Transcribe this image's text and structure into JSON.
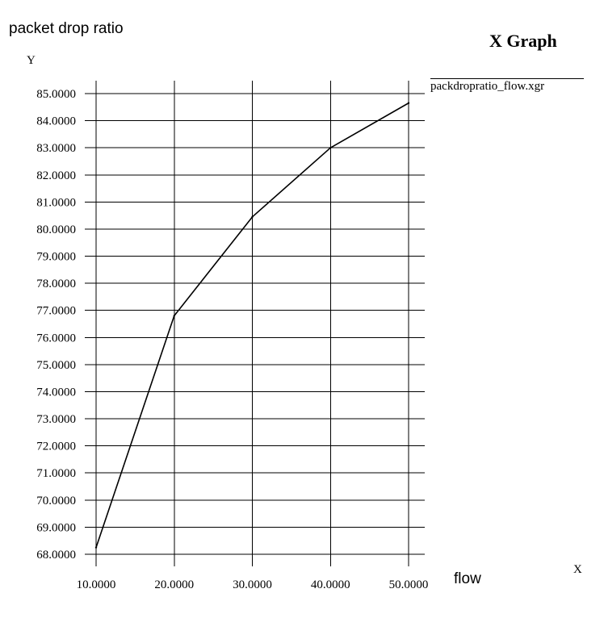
{
  "page": {
    "caption_top": "packet drop ratio",
    "caption_bottom": "flow",
    "graph_title": "X Graph",
    "y_axis_unit": "Y",
    "x_axis_unit": "X"
  },
  "chart_data": {
    "type": "line",
    "title": "X Graph",
    "xlabel": "X",
    "ylabel": "Y",
    "xlim": [
      10,
      50
    ],
    "ylim": [
      68,
      85
    ],
    "grid": true,
    "legend": "top-right",
    "x_ticks": [
      "10.0000",
      "20.0000",
      "30.0000",
      "40.0000",
      "50.0000"
    ],
    "y_ticks": [
      "68.0000",
      "69.0000",
      "70.0000",
      "71.0000",
      "72.0000",
      "73.0000",
      "74.0000",
      "75.0000",
      "76.0000",
      "77.0000",
      "78.0000",
      "79.0000",
      "80.0000",
      "81.0000",
      "82.0000",
      "83.0000",
      "84.0000",
      "85.0000"
    ],
    "series": [
      {
        "name": "packdropratio_flow.xgr",
        "color": "#000000",
        "x": [
          10,
          20,
          30,
          40,
          50
        ],
        "y": [
          68.25,
          76.8,
          80.45,
          83.0,
          84.65
        ]
      }
    ]
  }
}
